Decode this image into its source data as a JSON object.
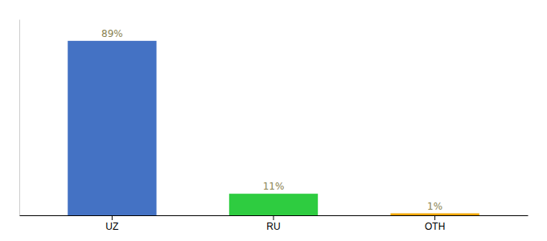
{
  "chart_data": {
    "type": "bar",
    "categories": [
      "UZ",
      "RU",
      "OTH"
    ],
    "values": [
      89,
      11,
      1
    ],
    "value_labels": [
      "89%",
      "11%",
      "1%"
    ],
    "colors": [
      "#4472c4",
      "#2ecc40",
      "#f0a500"
    ],
    "ylim": [
      0,
      100
    ],
    "data_labels": true,
    "tick_labels": "x",
    "grid": false
  }
}
